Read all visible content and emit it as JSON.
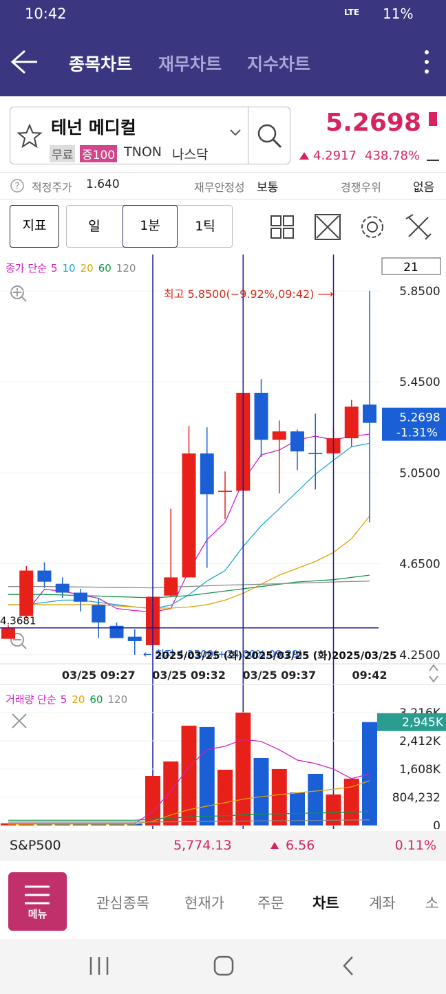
{
  "status_bar": {
    "time": "10:42",
    "network": "LTE",
    "battery": "11%"
  },
  "header": {
    "tabs": [
      "종목차트",
      "재무차트",
      "지수차트"
    ]
  },
  "stock": {
    "name": "테넌 메디컬",
    "tags": [
      "무료",
      "증100",
      "TNON",
      "나스닥"
    ],
    "price": "5.2698",
    "change": "4.2917",
    "change_rate": "438.78%"
  },
  "info_row": [
    {
      "label": "적정주가",
      "value": "1.640"
    },
    {
      "label": "재무안정성",
      "value": "보통"
    },
    {
      "label": "경쟁우위",
      "value": "없음"
    }
  ],
  "toolbar": {
    "indicator": "지표",
    "periods": [
      "일",
      "1분",
      "1틱"
    ]
  },
  "chart_data": [
    {
      "type": "candlestick",
      "legend_title": "종가 단순",
      "categories": [
        null,
        null,
        null,
        null,
        null,
        "03/25 09:27",
        null,
        null,
        null,
        null,
        "03/25 09:32",
        null,
        null,
        null,
        null,
        "03/25 09:37",
        null,
        null,
        null,
        null,
        "09:42"
      ],
      "open": [
        4.32,
        4.42,
        4.62,
        4.562,
        4.523,
        4.468,
        4.377,
        4.329,
        4.292,
        4.51,
        4.59,
        5.135,
        4.971,
        4.971,
        5.402,
        5.195,
        5.232,
        5.137,
        5.135,
        5.202,
        5.35
      ],
      "high": [
        4.38,
        4.64,
        4.656,
        4.59,
        4.54,
        4.5,
        4.392,
        4.362,
        4.505,
        4.892,
        5.256,
        5.25,
        5.056,
        5.44,
        5.462,
        5.28,
        5.24,
        5.31,
        5.25,
        5.371,
        5.85
      ],
      "low": [
        4.32,
        4.41,
        4.544,
        4.5,
        4.44,
        4.323,
        4.323,
        4.25,
        4.271,
        4.505,
        4.59,
        4.632,
        4.847,
        4.971,
        5.12,
        4.959,
        5.062,
        4.977,
        5.135,
        5.165,
        4.832
      ],
      "close": [
        4.37,
        4.62,
        4.571,
        4.523,
        4.483,
        4.392,
        4.323,
        4.31,
        4.505,
        4.59,
        5.135,
        4.956,
        4.971,
        5.402,
        5.195,
        5.232,
        5.144,
        5.135,
        5.202,
        5.341,
        5.2698
      ],
      "up_color": "#e8201a",
      "down_color": "#1a5fd6",
      "ylim": [
        4.21,
        6.01
      ],
      "yticks": [
        {
          "value": 5.85,
          "label": "5.8500"
        },
        {
          "value": 5.45,
          "label": "5.4500"
        },
        {
          "value": 5.05,
          "label": "5.0500"
        },
        {
          "value": 4.65,
          "label": "4.6500"
        },
        {
          "value": 4.25,
          "label": "4.2500"
        }
      ],
      "ma": [
        {
          "name": "5",
          "color": "#d21fc4",
          "values": [
            null,
            4.438,
            4.538,
            4.529,
            4.514,
            4.498,
            4.453,
            4.444,
            4.438,
            4.453,
            4.62,
            4.756,
            4.832,
            5.014,
            5.129,
            5.15,
            5.195,
            5.211,
            5.195,
            5.211,
            5.22
          ]
        },
        {
          "name": "10",
          "color": "#1fa6d2",
          "values": [
            4.47,
            4.47,
            4.48,
            4.49,
            4.49,
            4.48,
            4.47,
            4.46,
            4.453,
            4.468,
            4.514,
            4.574,
            4.62,
            4.726,
            4.817,
            4.892,
            4.968,
            5.044,
            5.105,
            5.165,
            5.18
          ]
        },
        {
          "name": "20",
          "color": "#e2a400",
          "values": [
            4.47,
            4.47,
            4.47,
            4.47,
            4.47,
            4.47,
            4.465,
            4.46,
            4.455,
            4.455,
            4.46,
            4.47,
            4.49,
            4.52,
            4.56,
            4.6,
            4.63,
            4.66,
            4.7,
            4.76,
            4.86
          ]
        },
        {
          "name": "60",
          "color": "#119447",
          "values": [
            4.515,
            4.515,
            4.515,
            4.513,
            4.51,
            4.508,
            4.505,
            4.503,
            4.5,
            4.505,
            4.51,
            4.52,
            4.53,
            4.54,
            4.55,
            4.56,
            4.57,
            4.575,
            4.58,
            4.59,
            4.6
          ]
        },
        {
          "name": "120",
          "color": "#888888",
          "values": [
            4.55,
            4.55,
            4.55,
            4.549,
            4.548,
            4.547,
            4.546,
            4.545,
            4.544,
            4.548,
            4.55,
            4.553,
            4.556,
            4.558,
            4.56,
            4.562,
            4.565,
            4.567,
            4.57,
            4.572,
            4.574
          ]
        }
      ],
      "period_count": "21",
      "last_change": "-1.31%",
      "crosshair_price": 4.3681,
      "high_label": "최고 5.8500(−9.92%,09:42) ⟶",
      "low_label": "← 최저 4.2500(+24.00%,09:29)",
      "crosshair_labels": [
        "2025/03/25 (화)",
        "2025/03/25 (화)",
        "2025/03/25"
      ]
    },
    {
      "type": "volume",
      "legend_title": "거래량 단순",
      "values": [
        60000,
        60000,
        55000,
        50000,
        50000,
        45000,
        45000,
        50000,
        1412000,
        1824000,
        2844000,
        2805000,
        1588000,
        3216000,
        1922000,
        1608000,
        941000,
        1471000,
        883000,
        1333000,
        2945000
      ],
      "value_labels": [
        null,
        null,
        null,
        null,
        null,
        null,
        null,
        null,
        null,
        null,
        null,
        null,
        null,
        null,
        null,
        null,
        null,
        null,
        null,
        null,
        "2,945K"
      ],
      "ylim": [
        0,
        3920000
      ],
      "yticks": [
        {
          "value": 3216000,
          "label": "3,216K"
        },
        {
          "value": 2412000,
          "label": "2,412K"
        },
        {
          "value": 1608000,
          "label": "1,608K"
        },
        {
          "value": 804232,
          "label": "804,232"
        },
        0
      ],
      "ma": [
        {
          "name": "5",
          "color": "#d21fc4",
          "values": [
            59000,
            59000,
            59000,
            59000,
            59000,
            59000,
            59000,
            59000,
            392000,
            981000,
            1667000,
            2158000,
            2256000,
            2452000,
            2393000,
            2158000,
            1863000,
            1765000,
            1608000,
            1334000,
            1471000
          ]
        },
        {
          "name": "20",
          "color": "#e2a400",
          "values": [
            40000,
            40000,
            40000,
            40000,
            40000,
            40000,
            40000,
            40000,
            120000,
            300000,
            450000,
            550000,
            650000,
            750000,
            820000,
            880000,
            930000,
            980000,
            1030000,
            1100000,
            1275000
          ]
        },
        {
          "name": "60",
          "color": "#119447",
          "values": [
            150000,
            150000,
            150000,
            150000,
            150000,
            150000,
            150000,
            150000,
            180000,
            210000,
            240000,
            260000,
            280000,
            300000,
            320000,
            330000,
            345000,
            355000,
            365000,
            380000,
            392000
          ]
        },
        {
          "name": "120",
          "color": "#888888",
          "values": [
            98000,
            98000,
            98000,
            98000,
            98000,
            98000,
            98000,
            98000,
            100000,
            105000,
            110000,
            115000,
            120000,
            125000,
            130000,
            135000,
            140000,
            145000,
            150000,
            155000,
            160000
          ]
        }
      ]
    }
  ],
  "index_ticker": {
    "name": "S&P500",
    "value": "5,774.13",
    "change": "6.56",
    "rate": "0.11%"
  },
  "bottom_nav": {
    "menu": "메뉴",
    "items": [
      "관심종목",
      "현재가",
      "주문",
      "차트",
      "계좌",
      "소"
    ]
  }
}
